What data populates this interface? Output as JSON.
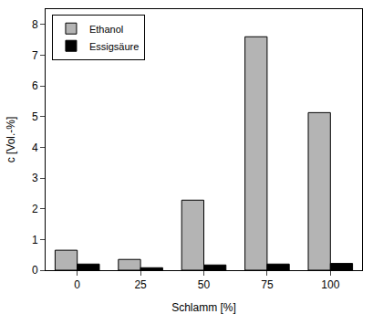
{
  "chart_data": {
    "type": "bar",
    "x_label": "Schlamm [%]",
    "y_label": "c [Vol.-%]",
    "categories": [
      "0",
      "25",
      "50",
      "75",
      "100"
    ],
    "series": [
      {
        "name": "Ethanol",
        "color": "#b4b4b4",
        "values": [
          0.65,
          0.35,
          2.28,
          7.6,
          5.13
        ]
      },
      {
        "name": "Essigsäure",
        "color": "#000000",
        "values": [
          0.2,
          0.08,
          0.17,
          0.2,
          0.22
        ]
      }
    ],
    "ylim": [
      0,
      8.5
    ],
    "yticks": [
      0,
      1,
      2,
      3,
      4,
      5,
      6,
      7,
      8
    ],
    "legend": "top left"
  }
}
